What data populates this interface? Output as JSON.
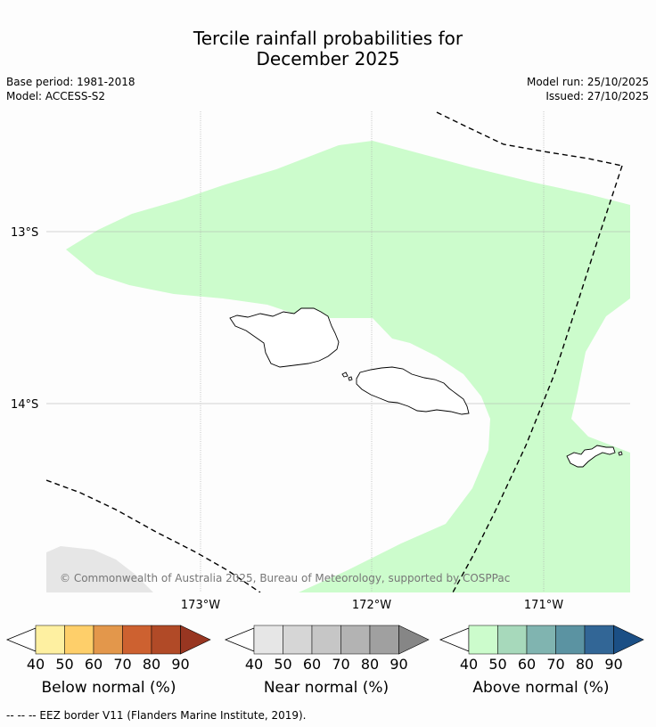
{
  "title": {
    "line1": "Tercile rainfall probabilities for",
    "line2": "December 2025"
  },
  "meta": {
    "base_period": "Base period: 1981-2018",
    "model": "Model: ACCESS-S2",
    "model_run": "Model run: 25/10/2025",
    "issued": "Issued: 27/10/2025"
  },
  "map": {
    "lat_labels": [
      "13°S",
      "14°S"
    ],
    "lon_labels": [
      "173°W",
      "172°W",
      "171°W"
    ],
    "copyright": "© Commonwealth of Australia 2025, Bureau of Meteorology, supported by COSPPac",
    "colors": {
      "above_40_50": "#ccfccc",
      "near_40_50": "#e6e6e6",
      "coast": "#000000",
      "grid": "#aaaaaa"
    }
  },
  "legend": {
    "below": {
      "title": "Below normal (%)",
      "ticks": [
        "40",
        "50",
        "60",
        "70",
        "80",
        "90"
      ],
      "colors": [
        "#fef0a1",
        "#fecf6a",
        "#e3974b",
        "#cd6130",
        "#b14a27",
        "#983621"
      ]
    },
    "near": {
      "title": "Near normal (%)",
      "ticks": [
        "40",
        "50",
        "60",
        "70",
        "80",
        "90"
      ],
      "colors": [
        "#e6e6e6",
        "#d6d6d6",
        "#c6c6c6",
        "#b3b3b3",
        "#a0a0a0",
        "#868686"
      ]
    },
    "above": {
      "title": "Above normal (%)",
      "ticks": [
        "40",
        "50",
        "60",
        "70",
        "80",
        "90"
      ],
      "colors": [
        "#ccfccc",
        "#a7d9bb",
        "#80b4b0",
        "#5b93a2",
        "#326696",
        "#1b4f85"
      ]
    }
  },
  "footnote": "--  --  -- EEZ border V11 (Flanders Marine Institute, 2019)."
}
